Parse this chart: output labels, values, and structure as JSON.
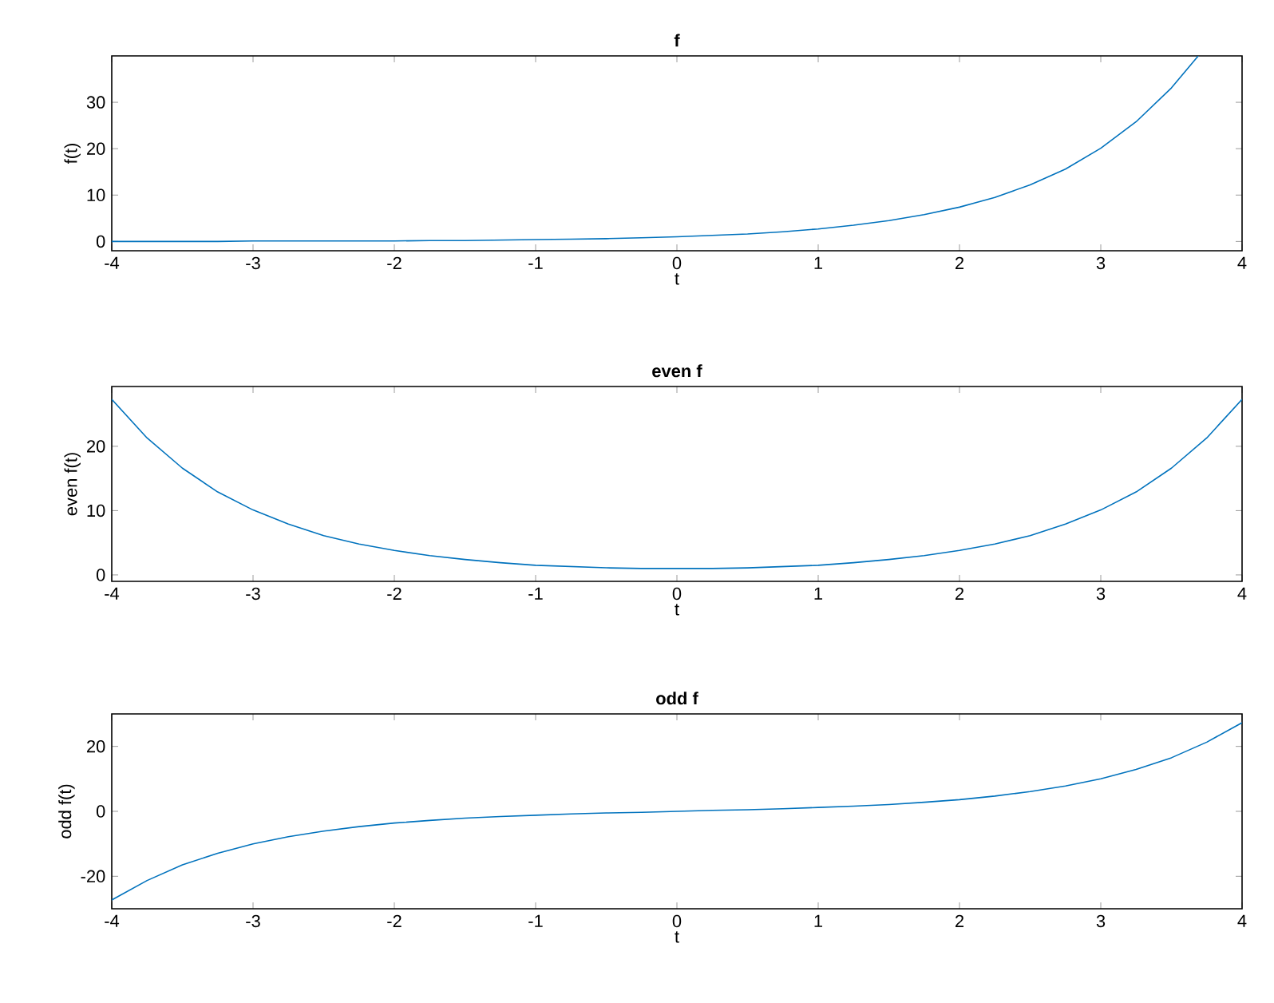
{
  "chart_data": [
    {
      "type": "line",
      "title": "f",
      "xlabel": "t",
      "ylabel": "f(t)",
      "xlim": [
        -4,
        4
      ],
      "ylim": [
        -2,
        40
      ],
      "xticks": [
        -4,
        -3,
        -2,
        -1,
        0,
        1,
        2,
        3,
        4
      ],
      "yticks": [
        0,
        10,
        20,
        30
      ],
      "x": [
        -4,
        -3.75,
        -3.5,
        -3.25,
        -3,
        -2.75,
        -2.5,
        -2.25,
        -2,
        -1.75,
        -1.5,
        -1.25,
        -1,
        -0.75,
        -0.5,
        -0.25,
        0,
        0.25,
        0.5,
        0.75,
        1,
        1.25,
        1.5,
        1.75,
        2,
        2.25,
        2.5,
        2.75,
        3,
        3.25,
        3.5,
        3.69
      ],
      "series": [
        {
          "color": "#0072bd",
          "values": [
            0.0,
            0.0,
            0.0,
            0.0,
            0.1,
            0.1,
            0.1,
            0.1,
            0.1,
            0.2,
            0.2,
            0.3,
            0.4,
            0.5,
            0.6,
            0.8,
            1.0,
            1.3,
            1.6,
            2.1,
            2.7,
            3.5,
            4.5,
            5.8,
            7.4,
            9.5,
            12.2,
            15.6,
            20.1,
            25.8,
            33.1,
            40.0
          ]
        }
      ]
    },
    {
      "type": "line",
      "title": "even f",
      "xlabel": "t",
      "ylabel": "even f(t)",
      "xlim": [
        -4,
        4
      ],
      "ylim": [
        -1,
        29.3
      ],
      "xticks": [
        -4,
        -3,
        -2,
        -1,
        0,
        1,
        2,
        3,
        4
      ],
      "yticks": [
        0,
        10,
        20
      ],
      "x": [
        -4,
        -3.75,
        -3.5,
        -3.25,
        -3,
        -2.75,
        -2.5,
        -2.25,
        -2,
        -1.75,
        -1.5,
        -1.25,
        -1,
        -0.75,
        -0.5,
        -0.25,
        0,
        0.25,
        0.5,
        0.75,
        1,
        1.25,
        1.5,
        1.75,
        2,
        2.25,
        2.5,
        2.75,
        3,
        3.25,
        3.5,
        3.75,
        4
      ],
      "series": [
        {
          "color": "#0072bd",
          "values": [
            27.3,
            21.3,
            16.6,
            12.9,
            10.1,
            7.9,
            6.1,
            4.8,
            3.8,
            3.0,
            2.4,
            1.9,
            1.5,
            1.3,
            1.1,
            1.0,
            1.0,
            1.0,
            1.1,
            1.3,
            1.5,
            1.9,
            2.4,
            3.0,
            3.8,
            4.8,
            6.1,
            7.9,
            10.1,
            12.9,
            16.6,
            21.3,
            27.3
          ]
        }
      ]
    },
    {
      "type": "line",
      "title": "odd f",
      "xlabel": "t",
      "ylabel": "odd f(t)",
      "xlim": [
        -4,
        4
      ],
      "ylim": [
        -30,
        30
      ],
      "xticks": [
        -4,
        -3,
        -2,
        -1,
        0,
        1,
        2,
        3,
        4
      ],
      "yticks": [
        -20,
        0,
        20
      ],
      "x": [
        -4,
        -3.75,
        -3.5,
        -3.25,
        -3,
        -2.75,
        -2.5,
        -2.25,
        -2,
        -1.75,
        -1.5,
        -1.25,
        -1,
        -0.75,
        -0.5,
        -0.25,
        0,
        0.25,
        0.5,
        0.75,
        1,
        1.25,
        1.5,
        1.75,
        2,
        2.25,
        2.5,
        2.75,
        3,
        3.25,
        3.5,
        3.75,
        4
      ],
      "series": [
        {
          "color": "#0072bd",
          "values": [
            -27.3,
            -21.3,
            -16.5,
            -12.9,
            -10.0,
            -7.8,
            -6.1,
            -4.7,
            -3.6,
            -2.8,
            -2.1,
            -1.6,
            -1.2,
            -0.8,
            -0.5,
            -0.3,
            0.0,
            0.3,
            0.5,
            0.8,
            1.2,
            1.6,
            2.1,
            2.8,
            3.6,
            4.7,
            6.1,
            7.8,
            10.0,
            12.9,
            16.5,
            21.3,
            27.3
          ]
        }
      ]
    }
  ]
}
